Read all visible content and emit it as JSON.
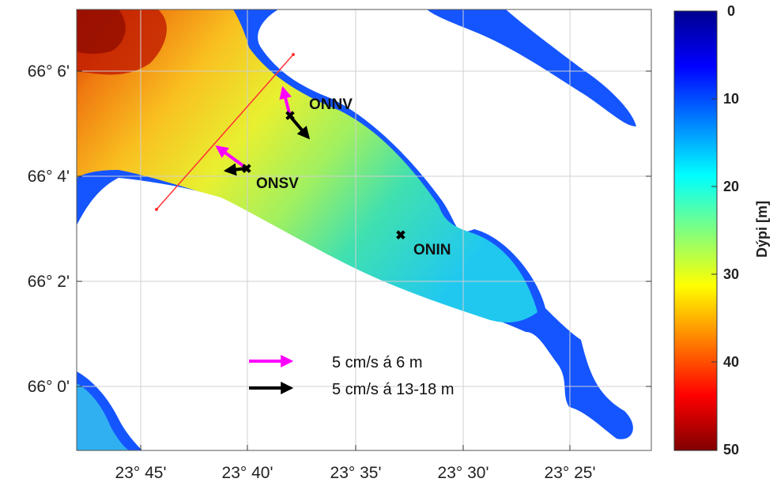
{
  "map": {
    "lat_ticks": [
      "66° 6'",
      "66° 4'",
      "66° 2'",
      "66° 0'"
    ],
    "lon_ticks": [
      "23° 45'",
      "23° 40'",
      "23° 35'",
      "23° 30'",
      "23° 25'"
    ]
  },
  "stations": [
    {
      "id": "ONNV",
      "label": "ONNV"
    },
    {
      "id": "ONSV",
      "label": "ONSV"
    },
    {
      "id": "ONIN",
      "label": "ONIN"
    }
  ],
  "legend": {
    "magenta_label": "5 cm/s á 6 m",
    "black_label": "5 cm/s á 13-18 m",
    "magenta_color": "#ff00ff",
    "black_color": "#000000"
  },
  "colorbar": {
    "title": "Dýpi [m]",
    "ticks": [
      "0",
      "10",
      "20",
      "30",
      "40",
      "50"
    ],
    "min": 0,
    "max": 50,
    "colormap": "jet",
    "reversed": true
  },
  "colors": {
    "land": "#ffffff",
    "shoreline": "#000000",
    "transect": "#ff3333",
    "grid": "#d0d0d0"
  }
}
